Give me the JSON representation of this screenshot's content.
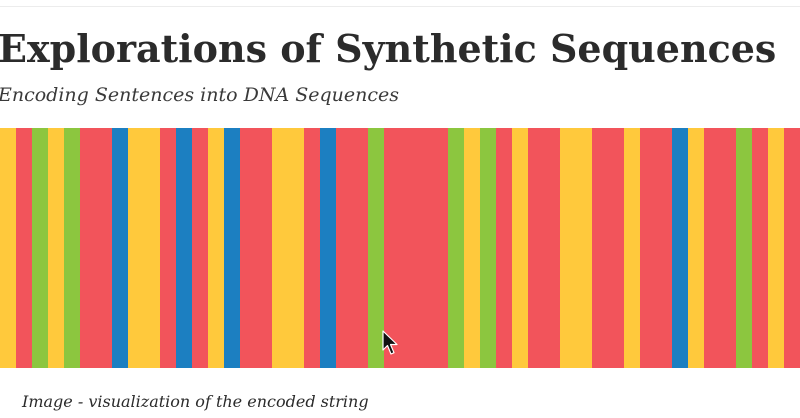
{
  "article": {
    "title": "Explorations of Synthetic Sequences",
    "subtitle": "Encoding Sentences into DNA Sequences"
  },
  "figure": {
    "caption": "Image - visualization of the encoded string",
    "colors": {
      "R": "#f2545b",
      "Y": "#ffc93c",
      "G": "#8cc63f",
      "B": "#1c7fc1"
    },
    "bands": [
      "Y",
      "R",
      "G",
      "Y",
      "G",
      "R",
      "R",
      "B",
      "Y",
      "Y",
      "R",
      "B",
      "R",
      "Y",
      "B",
      "R",
      "R",
      "Y",
      "Y",
      "R",
      "B",
      "R",
      "R",
      "G",
      "R",
      "R",
      "R",
      "R",
      "G",
      "Y",
      "G",
      "R",
      "Y",
      "R",
      "R",
      "Y",
      "Y",
      "R",
      "R",
      "Y",
      "R",
      "R",
      "B",
      "Y",
      "R",
      "R",
      "G",
      "R",
      "Y",
      "R"
    ]
  },
  "cursor": {
    "icon": "mouse-pointer-icon"
  }
}
